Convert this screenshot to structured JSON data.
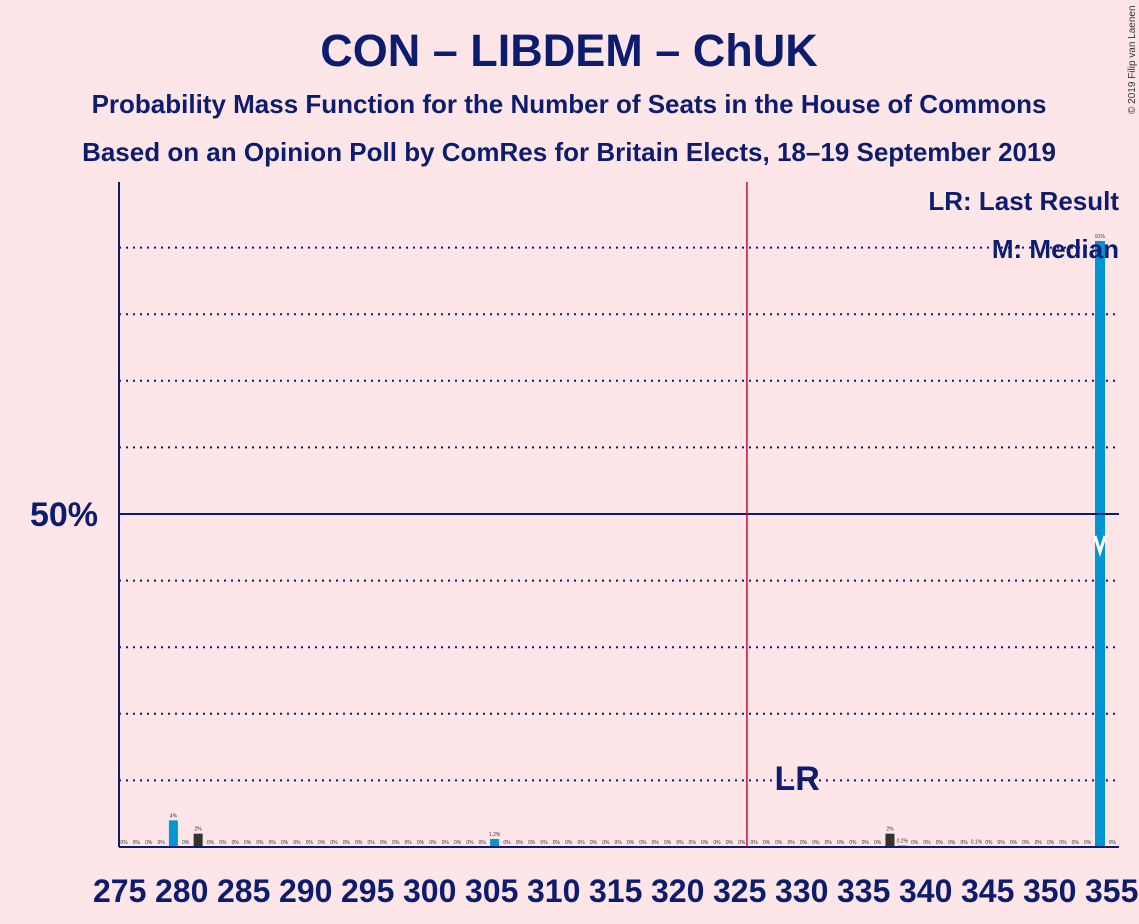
{
  "chart_data": {
    "type": "bar",
    "title": "CON – LIBDEM – ChUK",
    "subtitle1": "Probability Mass Function for the Number of Seats in the House of Commons",
    "subtitle2": "Based on an Opinion Poll by ComRes for Britain Elects, 18–19 September 2019",
    "copyright": "© 2019 Filip van Laenen",
    "legend": {
      "last_result": "LR: Last Result",
      "median": "M: Median",
      "placement": "top-right"
    },
    "ylabel_tick": "50%",
    "x_range": [
      275,
      355
    ],
    "y_range": [
      0,
      100
    ],
    "grid": true,
    "x_tick_labels": [
      "275",
      "280",
      "285",
      "290",
      "295",
      "300",
      "305",
      "310",
      "315",
      "320",
      "325",
      "330",
      "335",
      "340",
      "345",
      "350",
      "355"
    ],
    "majority_line_x": 326,
    "last_result_label": "LR",
    "last_result_x": 329,
    "median_x": 354,
    "series": [
      {
        "x": [
          275,
          276,
          277,
          278,
          279,
          280,
          281,
          282,
          283,
          284,
          285,
          286,
          287,
          288,
          289,
          290,
          291,
          292,
          293,
          294,
          295,
          296,
          297,
          298,
          299,
          300,
          301,
          302,
          303,
          304,
          305,
          306,
          307,
          308,
          309,
          310,
          311,
          312,
          313,
          314,
          315,
          316,
          317,
          318,
          319,
          320,
          321,
          322,
          323,
          324,
          325,
          326,
          327,
          328,
          329,
          330,
          331,
          332,
          333,
          334,
          335,
          336,
          337,
          338,
          339,
          340,
          341,
          342,
          343,
          344,
          345,
          346,
          347,
          348,
          349,
          350,
          351,
          352,
          353,
          354,
          355
        ],
        "values": [
          0,
          0,
          0,
          0,
          4,
          0,
          2,
          0,
          0,
          0,
          0,
          0,
          0,
          0,
          0,
          0,
          0,
          0,
          0,
          0,
          0,
          0,
          0,
          0,
          0,
          0,
          0,
          0,
          0,
          0,
          1.2,
          0,
          0,
          0,
          0,
          0,
          0,
          0,
          0,
          0,
          0,
          0,
          0,
          0,
          0,
          0,
          0,
          0,
          0,
          0,
          0,
          0,
          0,
          0,
          0,
          0,
          0,
          0,
          0,
          0,
          0,
          0,
          2,
          0.2,
          0,
          0,
          0,
          0,
          0,
          0.1,
          0,
          0,
          0,
          0,
          0,
          0,
          0,
          0,
          0,
          91,
          0
        ],
        "labels": [
          "0%",
          "0%",
          "0%",
          "0%",
          "4%",
          "0%",
          "2%",
          "0%",
          "0%",
          "0%",
          "0%",
          "0%",
          "0%",
          "0%",
          "0%",
          "0%",
          "0%",
          "0%",
          "0%",
          "0%",
          "0%",
          "0%",
          "0%",
          "0%",
          "0%",
          "0%",
          "0%",
          "0%",
          "0%",
          "0%",
          "1.2%",
          "0%",
          "0%",
          "0%",
          "0%",
          "0%",
          "0%",
          "0%",
          "0%",
          "0%",
          "0%",
          "0%",
          "0%",
          "0%",
          "0%",
          "0%",
          "0%",
          "0%",
          "0%",
          "0%",
          "0%",
          "0%",
          "0%",
          "0%",
          "0%",
          "0%",
          "0%",
          "0%",
          "0%",
          "0%",
          "0%",
          "0%",
          "2%",
          "0.2%",
          "0%",
          "0%",
          "0%",
          "0%",
          "0%",
          "0.1%",
          "0%",
          "0%",
          "0%",
          "0%",
          "0%",
          "0%",
          "0%",
          "0%",
          "0%",
          "91%",
          "0%"
        ],
        "colors": [
          "#0096d6",
          "#0096d6",
          "#0096d6",
          "#0096d6",
          "#0096d6",
          "#0096d6",
          "#333333",
          "#0096d6",
          "#0096d6",
          "#0096d6",
          "#0096d6",
          "#0096d6",
          "#0096d6",
          "#0096d6",
          "#0096d6",
          "#0096d6",
          "#0096d6",
          "#0096d6",
          "#0096d6",
          "#0096d6",
          "#0096d6",
          "#0096d6",
          "#0096d6",
          "#0096d6",
          "#0096d6",
          "#0096d6",
          "#0096d6",
          "#0096d6",
          "#0096d6",
          "#0096d6",
          "#0096d6",
          "#0096d6",
          "#0096d6",
          "#0096d6",
          "#0096d6",
          "#0096d6",
          "#0096d6",
          "#0096d6",
          "#0096d6",
          "#0096d6",
          "#0096d6",
          "#0096d6",
          "#0096d6",
          "#0096d6",
          "#0096d6",
          "#0096d6",
          "#0096d6",
          "#0096d6",
          "#0096d6",
          "#0096d6",
          "#0096d6",
          "#0096d6",
          "#0096d6",
          "#0096d6",
          "#0096d6",
          "#0096d6",
          "#0096d6",
          "#0096d6",
          "#0096d6",
          "#0096d6",
          "#0096d6",
          "#0096d6",
          "#333333",
          "#333333",
          "#0096d6",
          "#0096d6",
          "#0096d6",
          "#0096d6",
          "#0096d6",
          "#0096d6",
          "#0096d6",
          "#0096d6",
          "#0096d6",
          "#0096d6",
          "#0096d6",
          "#0096d6",
          "#0096d6",
          "#0096d6",
          "#0096d6",
          "#0096d6",
          "#0096d6"
        ]
      }
    ],
    "colors": {
      "background": "#fde5e8",
      "axis": "#0c1d6f",
      "bar_primary": "#0096d6",
      "bar_secondary": "#333333",
      "majority_line": "#c8102e"
    }
  }
}
